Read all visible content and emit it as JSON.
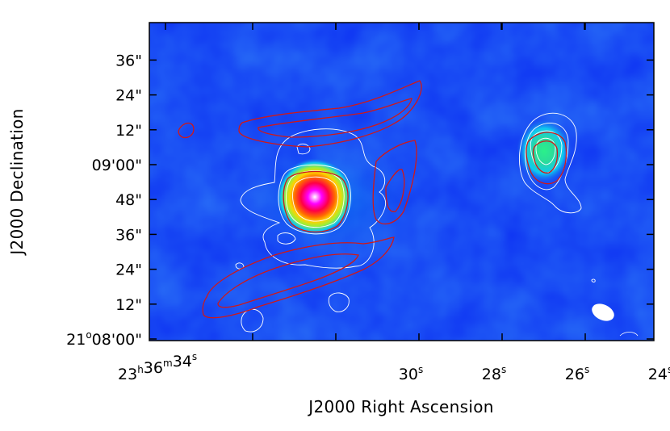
{
  "chart_data": {
    "type": "heatmap",
    "title": "",
    "xlabel": "J2000 Right Ascension",
    "ylabel": "J2000 Declination",
    "x_ticks": [
      {
        "hh": "23",
        "mm": "36",
        "ss": "34",
        "label": "23h36m34s"
      },
      {
        "ss": "30",
        "label": "30s"
      },
      {
        "ss": "28",
        "label": "28s"
      },
      {
        "ss": "26",
        "label": "26s"
      },
      {
        "ss": "24",
        "label": "24s"
      }
    ],
    "y_ticks": [
      {
        "text": "21°08'00\"",
        "deg": "21",
        "rest": "08'00\""
      },
      {
        "text": "12\""
      },
      {
        "text": "24\""
      },
      {
        "text": "36\""
      },
      {
        "text": "48\""
      },
      {
        "text": "09'00\""
      },
      {
        "text": "12\""
      },
      {
        "text": "24\""
      },
      {
        "text": "36\""
      }
    ],
    "colormap": [
      "#0b1ff0",
      "#1a5cf0",
      "#0fc8f0",
      "#2bdc9a",
      "#9cef39",
      "#ffd200",
      "#ff6a00",
      "#ff0045",
      "#ff00ff",
      "#ffffff"
    ],
    "contour_colors": {
      "radio": "#d01818",
      "optical": "#ffffff"
    },
    "sources": [
      {
        "name": "bright central source",
        "ra_s": 30.3,
        "dec": "08'47\"",
        "peak": "saturated (white/magenta)"
      },
      {
        "name": "eastern source",
        "ra_s": 25.0,
        "dec": "09'03\"",
        "peak": "green"
      }
    ],
    "beam": {
      "shape": "ellipse",
      "location": "lower-right",
      "color": "#ffffff"
    },
    "grid": false,
    "legend": "none"
  }
}
